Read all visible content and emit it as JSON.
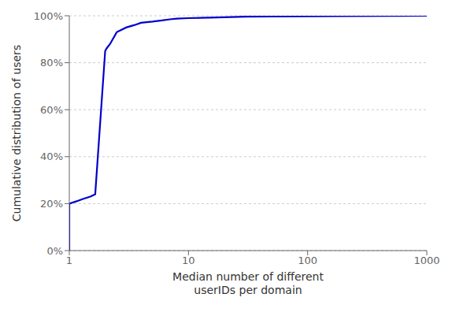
{
  "chart_data": {
    "type": "line",
    "title": "",
    "xlabel": "Median number of different\nuserIDs per domain",
    "ylabel": "Cumulative distribution of users",
    "x": [
      1.0,
      1.0,
      1.15,
      1.3,
      1.5,
      1.65,
      2.0,
      2.05,
      2.2,
      2.5,
      3.0,
      3.5,
      4.0,
      5.0,
      6.0,
      7.0,
      8.0,
      10.0,
      15.0,
      20.0,
      30.0,
      50.0,
      100.0,
      200.0,
      500.0,
      1000.0
    ],
    "values": [
      0.0,
      0.2,
      0.21,
      0.22,
      0.23,
      0.24,
      0.85,
      0.86,
      0.88,
      0.93,
      0.95,
      0.96,
      0.97,
      0.975,
      0.98,
      0.985,
      0.988,
      0.99,
      0.992,
      0.994,
      0.996,
      0.997,
      0.998,
      0.999,
      0.9995,
      1.0
    ],
    "color": "#0000cc",
    "log": "x",
    "xlim": [
      1,
      1000
    ],
    "xticks": [
      1,
      10,
      100,
      1000
    ],
    "ylim": [
      0,
      1.0
    ],
    "yticks": [
      {
        "value": 0,
        "label": "0%"
      },
      {
        "value": 0.2,
        "label": "20%"
      },
      {
        "value": 0.4,
        "label": "40%"
      },
      {
        "value": 0.6,
        "label": "60%"
      },
      {
        "value": 0.8,
        "label": "80%"
      },
      {
        "value": 1.0,
        "label": "100%"
      }
    ],
    "grid": "y"
  }
}
